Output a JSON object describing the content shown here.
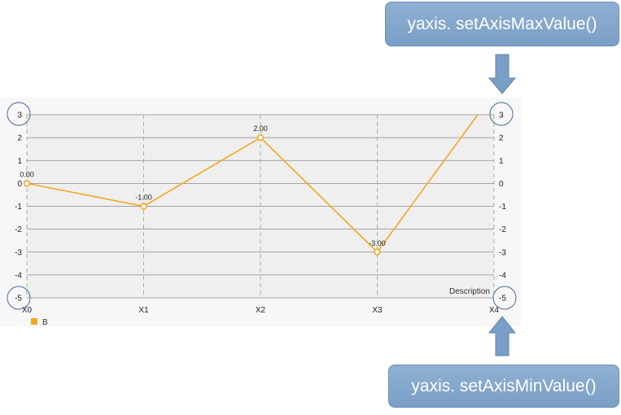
{
  "chart_data": {
    "type": "line",
    "categories": [
      "X0",
      "X1",
      "X2",
      "X3",
      "X4"
    ],
    "series": [
      {
        "name": "B",
        "values": [
          0,
          -1,
          2,
          -3,
          3
        ],
        "labels": [
          "0.00",
          "-1.00",
          "2.00",
          "-3.00",
          ""
        ],
        "color": "#f5a623"
      }
    ],
    "ylim": [
      -5,
      3
    ],
    "y_ticks": [
      "3",
      "2",
      "1",
      "0",
      "-1",
      "-2",
      "-3",
      "-4",
      "-5"
    ],
    "description": "Description",
    "grid": true,
    "legend_position": "bottom-left"
  },
  "annotations": {
    "max_label": "yaxis. setAxisMaxValue()",
    "min_label": "yaxis. setAxisMinValue()"
  },
  "colors": {
    "line": "#f5a623",
    "vertical_grid": "#8fc27a",
    "horizontal_grid": "#8a8a8a",
    "callout": "#7a9fc6",
    "arrow": "#7a9fc6",
    "circle": "#4a6a9a"
  }
}
